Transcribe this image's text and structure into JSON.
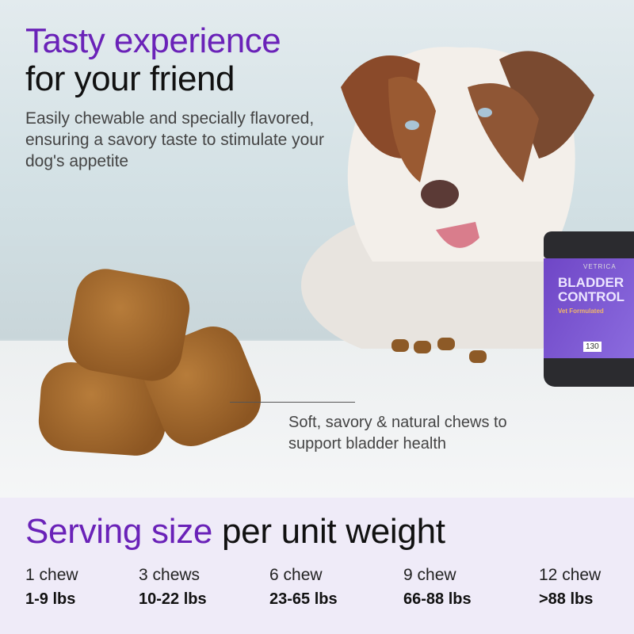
{
  "headline": {
    "accent": "Tasty experience",
    "rest": "for your friend"
  },
  "subheadline": "Easily chewable and specially flavored, ensuring a savory taste to stimulate your dog's appetite",
  "callout": "Soft, savory & natural chews to support bladder health",
  "product": {
    "brand": "VETRICA",
    "name_line1": "BLADDER",
    "name_line2": "CONTROL",
    "tagline": "Vet Formulated",
    "count": "130"
  },
  "serving": {
    "title_accent": "Serving size",
    "title_rest": "per unit weight",
    "items": [
      {
        "chews": "1 chew",
        "weight": "1-9 lbs"
      },
      {
        "chews": "3 chews",
        "weight": "10-22 lbs"
      },
      {
        "chews": "6 chew",
        "weight": "23-65 lbs"
      },
      {
        "chews": "9 chew",
        "weight": "66-88 lbs"
      },
      {
        "chews": "12 chew",
        "weight": ">88 lbs"
      }
    ]
  },
  "colors": {
    "accent": "#6a22b8",
    "panel": "#efebf8"
  }
}
